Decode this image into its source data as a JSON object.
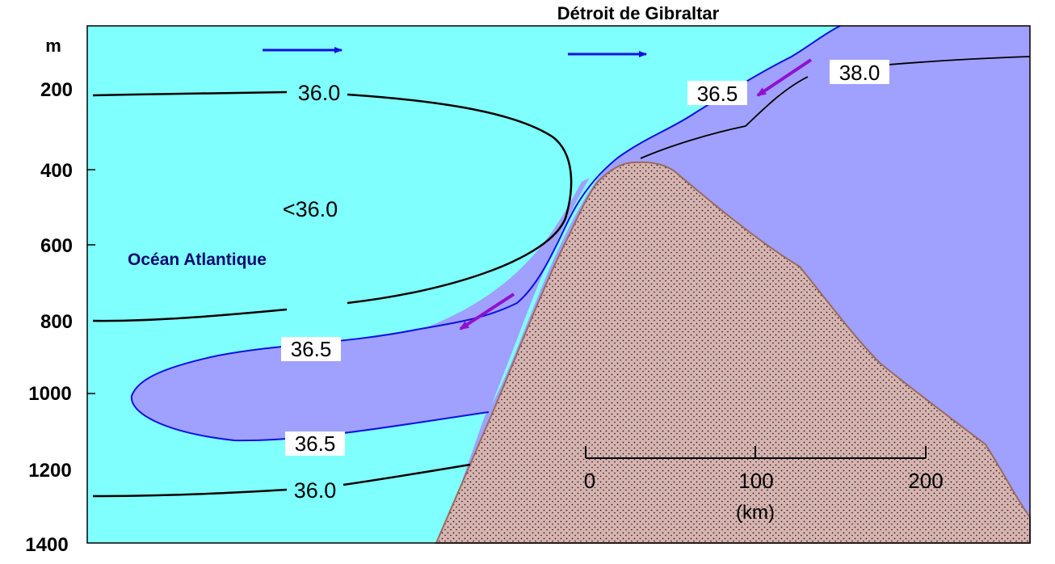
{
  "title": "Détroit de Gibraltar",
  "region_label": "Océan Atlantique",
  "depth_axis": {
    "unit": "m",
    "ticks": [
      "200",
      "400",
      "600",
      "800",
      "1000",
      "1200",
      "1400"
    ]
  },
  "contours": {
    "c360_upper": "36.0",
    "c365_surface": "36.5",
    "c380": "38.0",
    "c_lt360": "<36.0",
    "c365_tongue_top": "36.5",
    "c365_tongue_bottom": "36.5",
    "c360_lower": "36.0"
  },
  "scale_bar": {
    "ticks": [
      "0",
      "100",
      "200"
    ],
    "unit": "(km)"
  },
  "colors": {
    "atlantic_water": "#80ffff",
    "mediterranean_water": "#a0a0ff",
    "seafloor": "#d8b4b0",
    "surface_arrow": "#1010e0",
    "outflow_arrow": "#9010d0",
    "contour": "#000000"
  }
}
